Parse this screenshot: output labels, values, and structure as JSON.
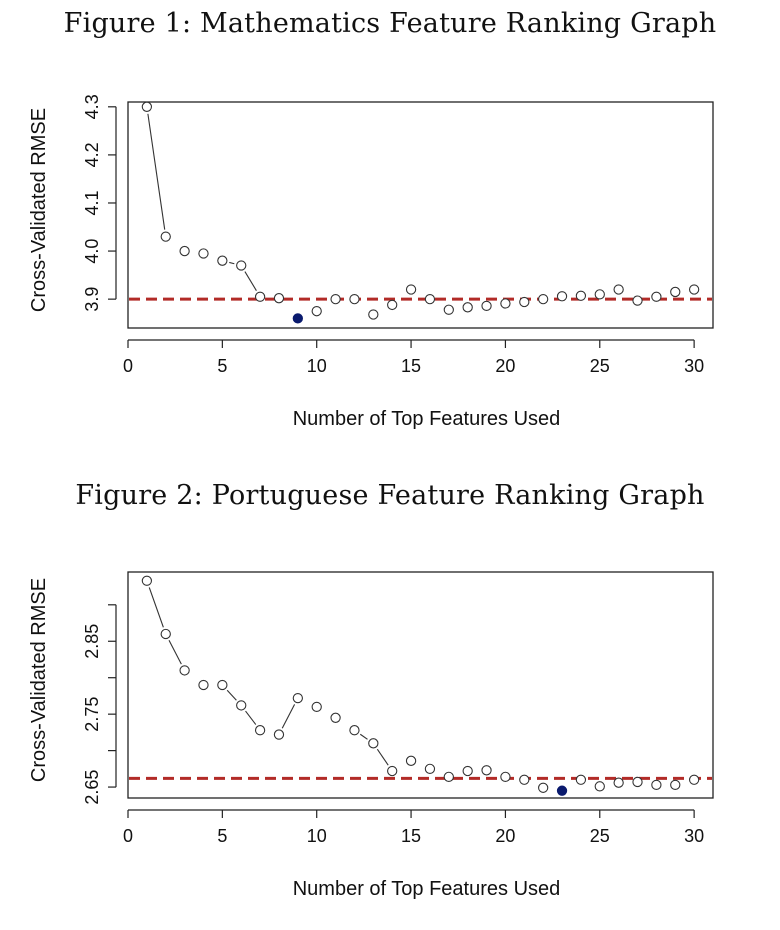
{
  "figures": [
    {
      "caption": "Figure 1: Mathematics Feature Ranking Graph"
    },
    {
      "caption": "Figure 2: Portuguese Feature Ranking Graph"
    }
  ],
  "chart_data": [
    {
      "type": "scatter",
      "title": "",
      "xlabel": "Number of Top Features Used",
      "ylabel": "Cross-Validated RMSE",
      "xlim": [
        0,
        31
      ],
      "ylim": [
        3.84,
        4.31
      ],
      "xticks": [
        0,
        5,
        10,
        15,
        20,
        25,
        30
      ],
      "yticks": [
        3.9,
        4.0,
        4.1,
        4.2,
        4.3
      ],
      "ytick_labels": [
        "3.9",
        "4.0",
        "4.1",
        "4.2",
        "4.3"
      ],
      "reference_line": {
        "y": 3.9,
        "style": "dashed",
        "color": "#b22b27"
      },
      "grid": false,
      "connector_segments_after_x": [
        1,
        5,
        6
      ],
      "highlight_x": 9,
      "highlight_color": "#0a1a6e",
      "x": [
        1,
        2,
        3,
        4,
        5,
        6,
        7,
        8,
        9,
        10,
        11,
        12,
        13,
        14,
        15,
        16,
        17,
        18,
        19,
        20,
        21,
        22,
        23,
        24,
        25,
        26,
        27,
        28,
        29,
        30
      ],
      "y": [
        4.3,
        4.03,
        4.0,
        3.995,
        3.98,
        3.97,
        3.905,
        3.902,
        3.86,
        3.875,
        3.9,
        3.9,
        3.868,
        3.888,
        3.92,
        3.9,
        3.878,
        3.883,
        3.886,
        3.891,
        3.894,
        3.9,
        3.906,
        3.907,
        3.91,
        3.92,
        3.897,
        3.905,
        3.915,
        3.92
      ]
    },
    {
      "type": "scatter",
      "title": "",
      "xlabel": "Number of Top Features Used",
      "ylabel": "Cross-Validated RMSE",
      "xlim": [
        0,
        31
      ],
      "ylim": [
        2.635,
        2.945
      ],
      "xticks": [
        0,
        5,
        10,
        15,
        20,
        25,
        30
      ],
      "yticks": [
        2.65,
        2.75,
        2.85
      ],
      "minor_yticks": [
        2.7,
        2.8,
        2.9
      ],
      "ytick_labels": [
        "2.65",
        "2.75",
        "2.85"
      ],
      "reference_line": {
        "y": 2.662,
        "style": "dashed",
        "color": "#b22b27"
      },
      "grid": false,
      "connector_segments_after_x": [
        1,
        2,
        5,
        6,
        8,
        12,
        13
      ],
      "highlight_x": 23,
      "highlight_color": "#0a1a6e",
      "x": [
        1,
        2,
        3,
        4,
        5,
        6,
        7,
        8,
        9,
        10,
        11,
        12,
        13,
        14,
        15,
        16,
        17,
        18,
        19,
        20,
        21,
        22,
        23,
        24,
        25,
        26,
        27,
        28,
        29,
        30
      ],
      "y": [
        2.933,
        2.86,
        2.81,
        2.79,
        2.79,
        2.762,
        2.728,
        2.722,
        2.772,
        2.76,
        2.745,
        2.728,
        2.71,
        2.672,
        2.686,
        2.675,
        2.664,
        2.672,
        2.673,
        2.664,
        2.66,
        2.649,
        2.645,
        2.66,
        2.651,
        2.656,
        2.657,
        2.653,
        2.653,
        2.66
      ]
    }
  ]
}
